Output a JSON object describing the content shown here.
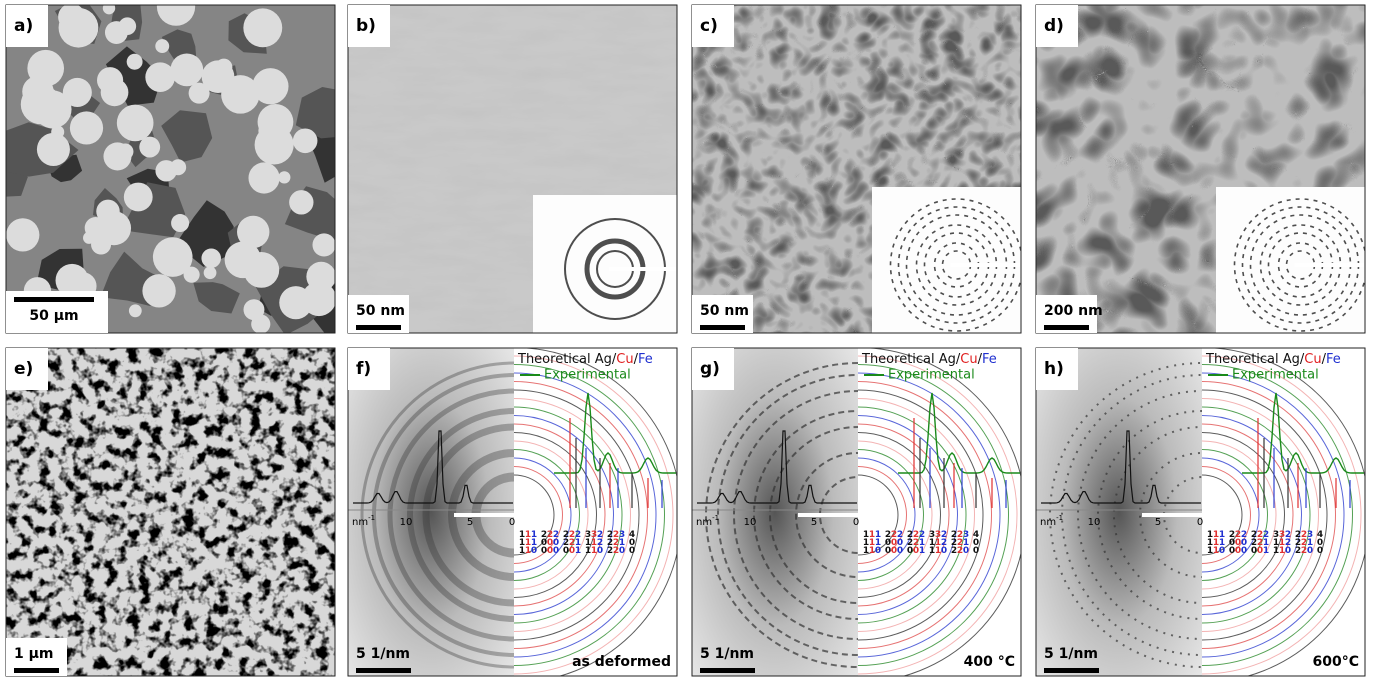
{
  "panels": [
    {
      "label": "a)",
      "scale_bar": "50 µm"
    },
    {
      "label": "b)",
      "scale_bar": "50 nm"
    },
    {
      "label": "c)",
      "scale_bar": "50 nm"
    },
    {
      "label": "d)",
      "scale_bar": "200 nm"
    },
    {
      "label": "e)",
      "scale_bar": "1 µm"
    },
    {
      "label": "f)",
      "scale_bar": "5 1/nm",
      "condition": "as deformed"
    },
    {
      "label": "g)",
      "scale_bar": "5 1/nm",
      "condition": "400 °C"
    },
    {
      "label": "h)",
      "scale_bar": "5 1/nm",
      "condition": "600°C"
    }
  ],
  "legend": {
    "theoretical": "Theoretical Ag/",
    "cu": "Cu",
    "slash": "/",
    "fe": "Fe",
    "experimental": "Experimental"
  },
  "axis": {
    "unit": "nm",
    "exponent": "-1",
    "ticks": [
      "10",
      "5",
      "0"
    ]
  },
  "hkl": {
    "ag": [
      "111",
      "200",
      "220",
      "311",
      "222",
      "400"
    ],
    "cu": [
      "111",
      "200",
      "220",
      "311",
      "222"
    ],
    "fe": [
      "110",
      "200",
      "211",
      "220",
      "310"
    ]
  }
}
